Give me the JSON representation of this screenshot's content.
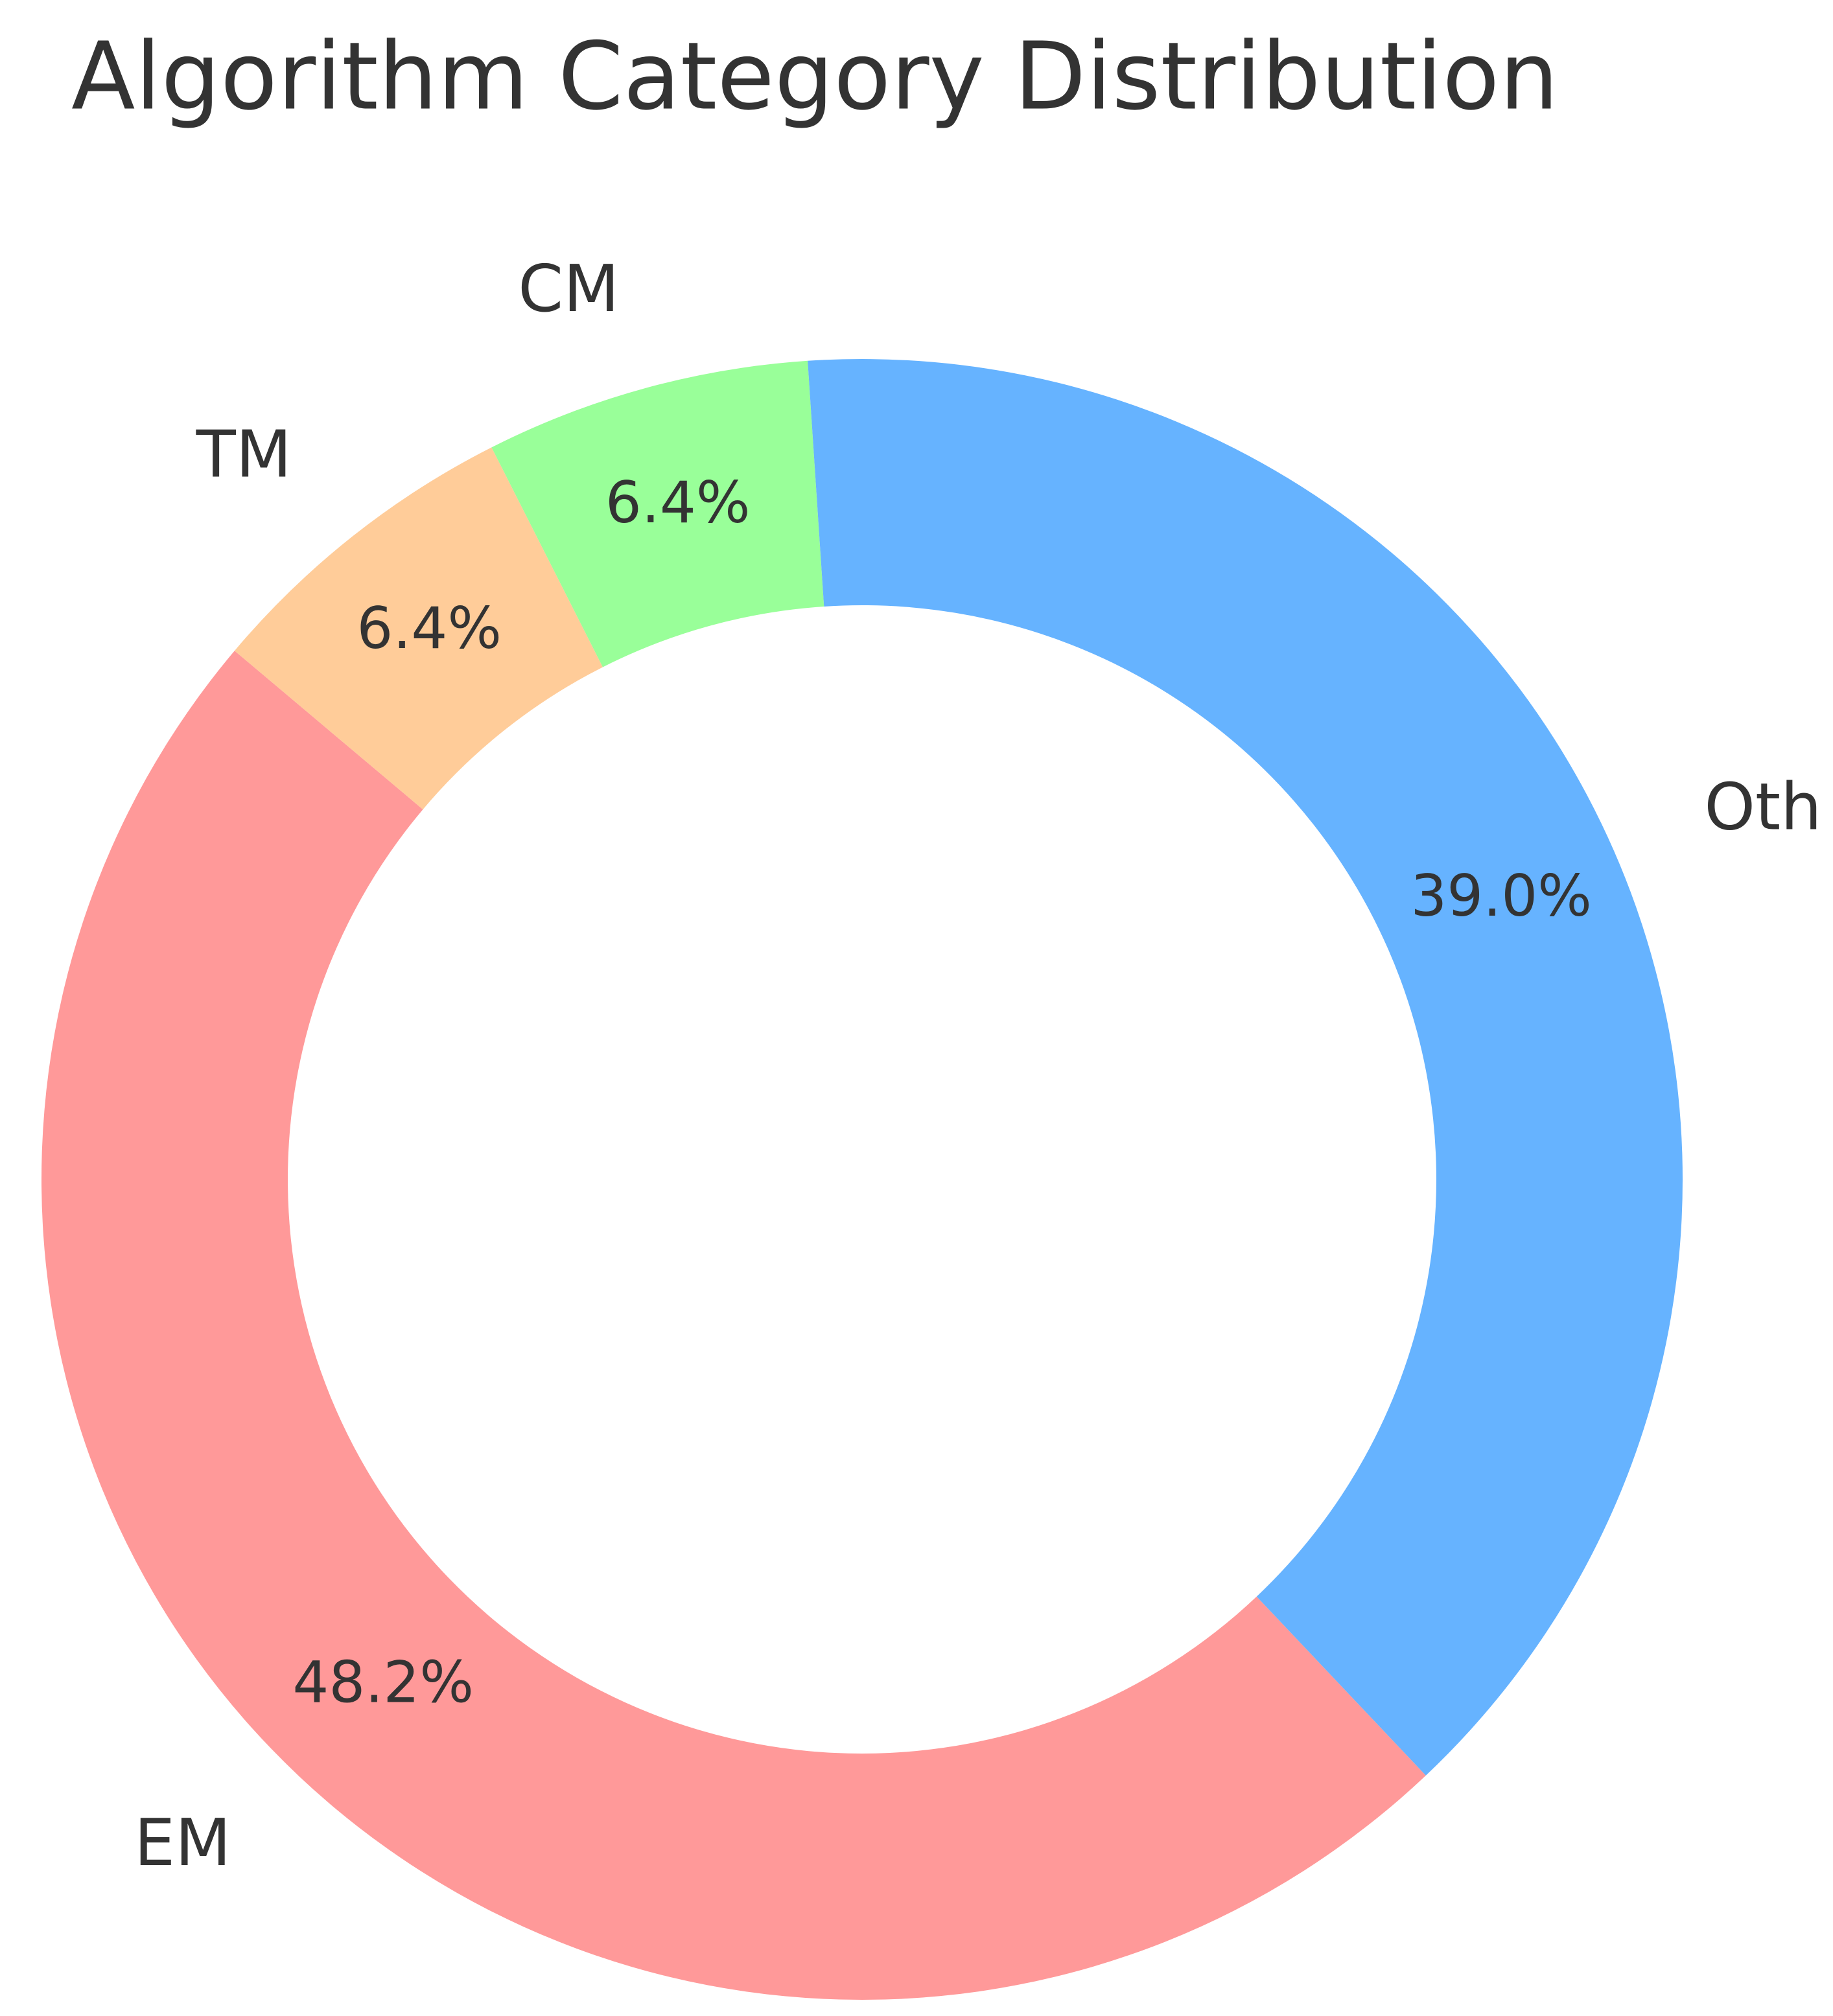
{
  "chart_data": {
    "type": "donut",
    "title": "Algorithm Category Distribution",
    "categories": [
      "EM",
      "TM",
      "CM",
      "Oth"
    ],
    "values": [
      48.2,
      6.4,
      6.4,
      39.0
    ],
    "value_labels": [
      "48.2%",
      "6.4%",
      "6.4%",
      "39.0%"
    ],
    "colors": [
      "#ff9999",
      "#ffcc99",
      "#99ff99",
      "#66b3ff"
    ]
  }
}
